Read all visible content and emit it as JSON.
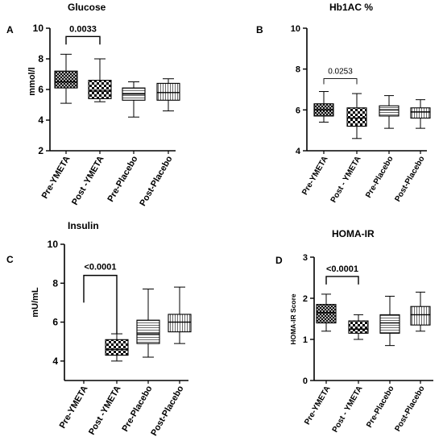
{
  "chart_data": [
    {
      "type": "box",
      "panel_label": "A",
      "title": "Glucose",
      "ylabel": "mmol/l",
      "ylim": [
        2,
        10
      ],
      "yticks": [
        2,
        4,
        6,
        8,
        10
      ],
      "categories": [
        "Pre-YMETA",
        "Post -YMETA",
        "Pre-Placebo",
        "Post-Placebo"
      ],
      "boxes": [
        {
          "category": "Pre-YMETA",
          "min": 5.1,
          "q1": 6.1,
          "median": 6.5,
          "q3": 7.2,
          "max": 8.3,
          "pattern": "crosshatch"
        },
        {
          "category": "Post -YMETA",
          "min": 5.2,
          "q1": 5.4,
          "median": 5.9,
          "q3": 6.6,
          "max": 8.0,
          "pattern": "checker"
        },
        {
          "category": "Pre-Placebo",
          "min": 4.2,
          "q1": 5.3,
          "median": 5.7,
          "q3": 6.1,
          "max": 6.5,
          "pattern": "hlines"
        },
        {
          "category": "Post-Placebo",
          "min": 4.6,
          "q1": 5.3,
          "median": 5.8,
          "q3": 6.4,
          "max": 6.7,
          "pattern": "vlines"
        }
      ],
      "annotation": {
        "text": "0.0033",
        "from": 0,
        "to": 1,
        "style": "bracket-bold"
      }
    },
    {
      "type": "box",
      "panel_label": "B",
      "title": "Hb1AC %",
      "ylabel": "",
      "ylim": [
        4,
        10
      ],
      "yticks": [
        4,
        6,
        8,
        10
      ],
      "categories": [
        "Pre-YMETA",
        "Post - YMETA",
        "Pre-Placebo",
        "Post-Placebo"
      ],
      "boxes": [
        {
          "category": "Pre-YMETA",
          "min": 5.4,
          "q1": 5.7,
          "median": 6.0,
          "q3": 6.3,
          "max": 6.9,
          "pattern": "crosshatch"
        },
        {
          "category": "Post - YMETA",
          "min": 4.6,
          "q1": 5.2,
          "median": 5.6,
          "q3": 6.1,
          "max": 6.8,
          "pattern": "checker"
        },
        {
          "category": "Pre-Placebo",
          "min": 5.1,
          "q1": 5.7,
          "median": 6.0,
          "q3": 6.2,
          "max": 6.7,
          "pattern": "hlines"
        },
        {
          "category": "Post-Placebo",
          "min": 5.1,
          "q1": 5.6,
          "median": 5.9,
          "q3": 6.1,
          "max": 6.5,
          "pattern": "vlines"
        }
      ],
      "annotation": {
        "text": "0.0253",
        "from": 0,
        "to": 1,
        "style": "bracket-thin"
      }
    },
    {
      "type": "box",
      "panel_label": "C",
      "title": "Insulin",
      "ylabel": "mU/mL",
      "ylim": [
        3,
        10
      ],
      "yticks": [
        4,
        6,
        8,
        10
      ],
      "categories": [
        "Pre-YMETA",
        "Post -YMETA",
        "Pre-Placebo",
        "Post-Placebo"
      ],
      "boxes": [
        {
          "category": "Post -YMETA",
          "index": 1,
          "min": 4.0,
          "q1": 4.3,
          "median": 4.6,
          "q3": 5.1,
          "max": 5.4,
          "pattern": "checker"
        },
        {
          "category": "Pre-Placebo",
          "index": 2,
          "min": 4.2,
          "q1": 4.9,
          "median": 5.4,
          "q3": 6.1,
          "max": 7.7,
          "pattern": "hlines"
        },
        {
          "category": "Post-Placebo",
          "index": 3,
          "min": 4.9,
          "q1": 5.5,
          "median": 6.0,
          "q3": 6.4,
          "max": 7.8,
          "pattern": "vlines"
        }
      ],
      "annotation": {
        "text": "<0.0001",
        "from": 0,
        "to": 1,
        "style": "bracket-tall",
        "from_y": 7.0,
        "to_y": 5.4,
        "top": 8.4
      }
    },
    {
      "type": "box",
      "panel_label": "D",
      "title": "HOMA-IR",
      "ylabel": "HOMA-IR Score",
      "ylim": [
        0,
        3
      ],
      "yticks": [
        0,
        1,
        2,
        3
      ],
      "categories": [
        "Pre-YMETA",
        "Post - YMETA",
        "Pre-Placebo",
        "Post-Placebo"
      ],
      "boxes": [
        {
          "category": "Pre-YMETA",
          "min": 1.2,
          "q1": 1.4,
          "median": 1.65,
          "q3": 1.85,
          "max": 2.1,
          "pattern": "crosshatch"
        },
        {
          "category": "Post - YMETA",
          "min": 1.0,
          "q1": 1.15,
          "median": 1.25,
          "q3": 1.45,
          "max": 1.6,
          "pattern": "checker"
        },
        {
          "category": "Pre-Placebo",
          "min": 0.85,
          "q1": 1.15,
          "median": 1.4,
          "q3": 1.6,
          "max": 2.05,
          "pattern": "hlines"
        },
        {
          "category": "Post-Placebo",
          "min": 1.2,
          "q1": 1.35,
          "median": 1.6,
          "q3": 1.8,
          "max": 2.15,
          "pattern": "vlines"
        }
      ],
      "annotation": {
        "text": "<0.0001",
        "from": 0,
        "to": 1,
        "style": "bracket-bold"
      }
    }
  ]
}
